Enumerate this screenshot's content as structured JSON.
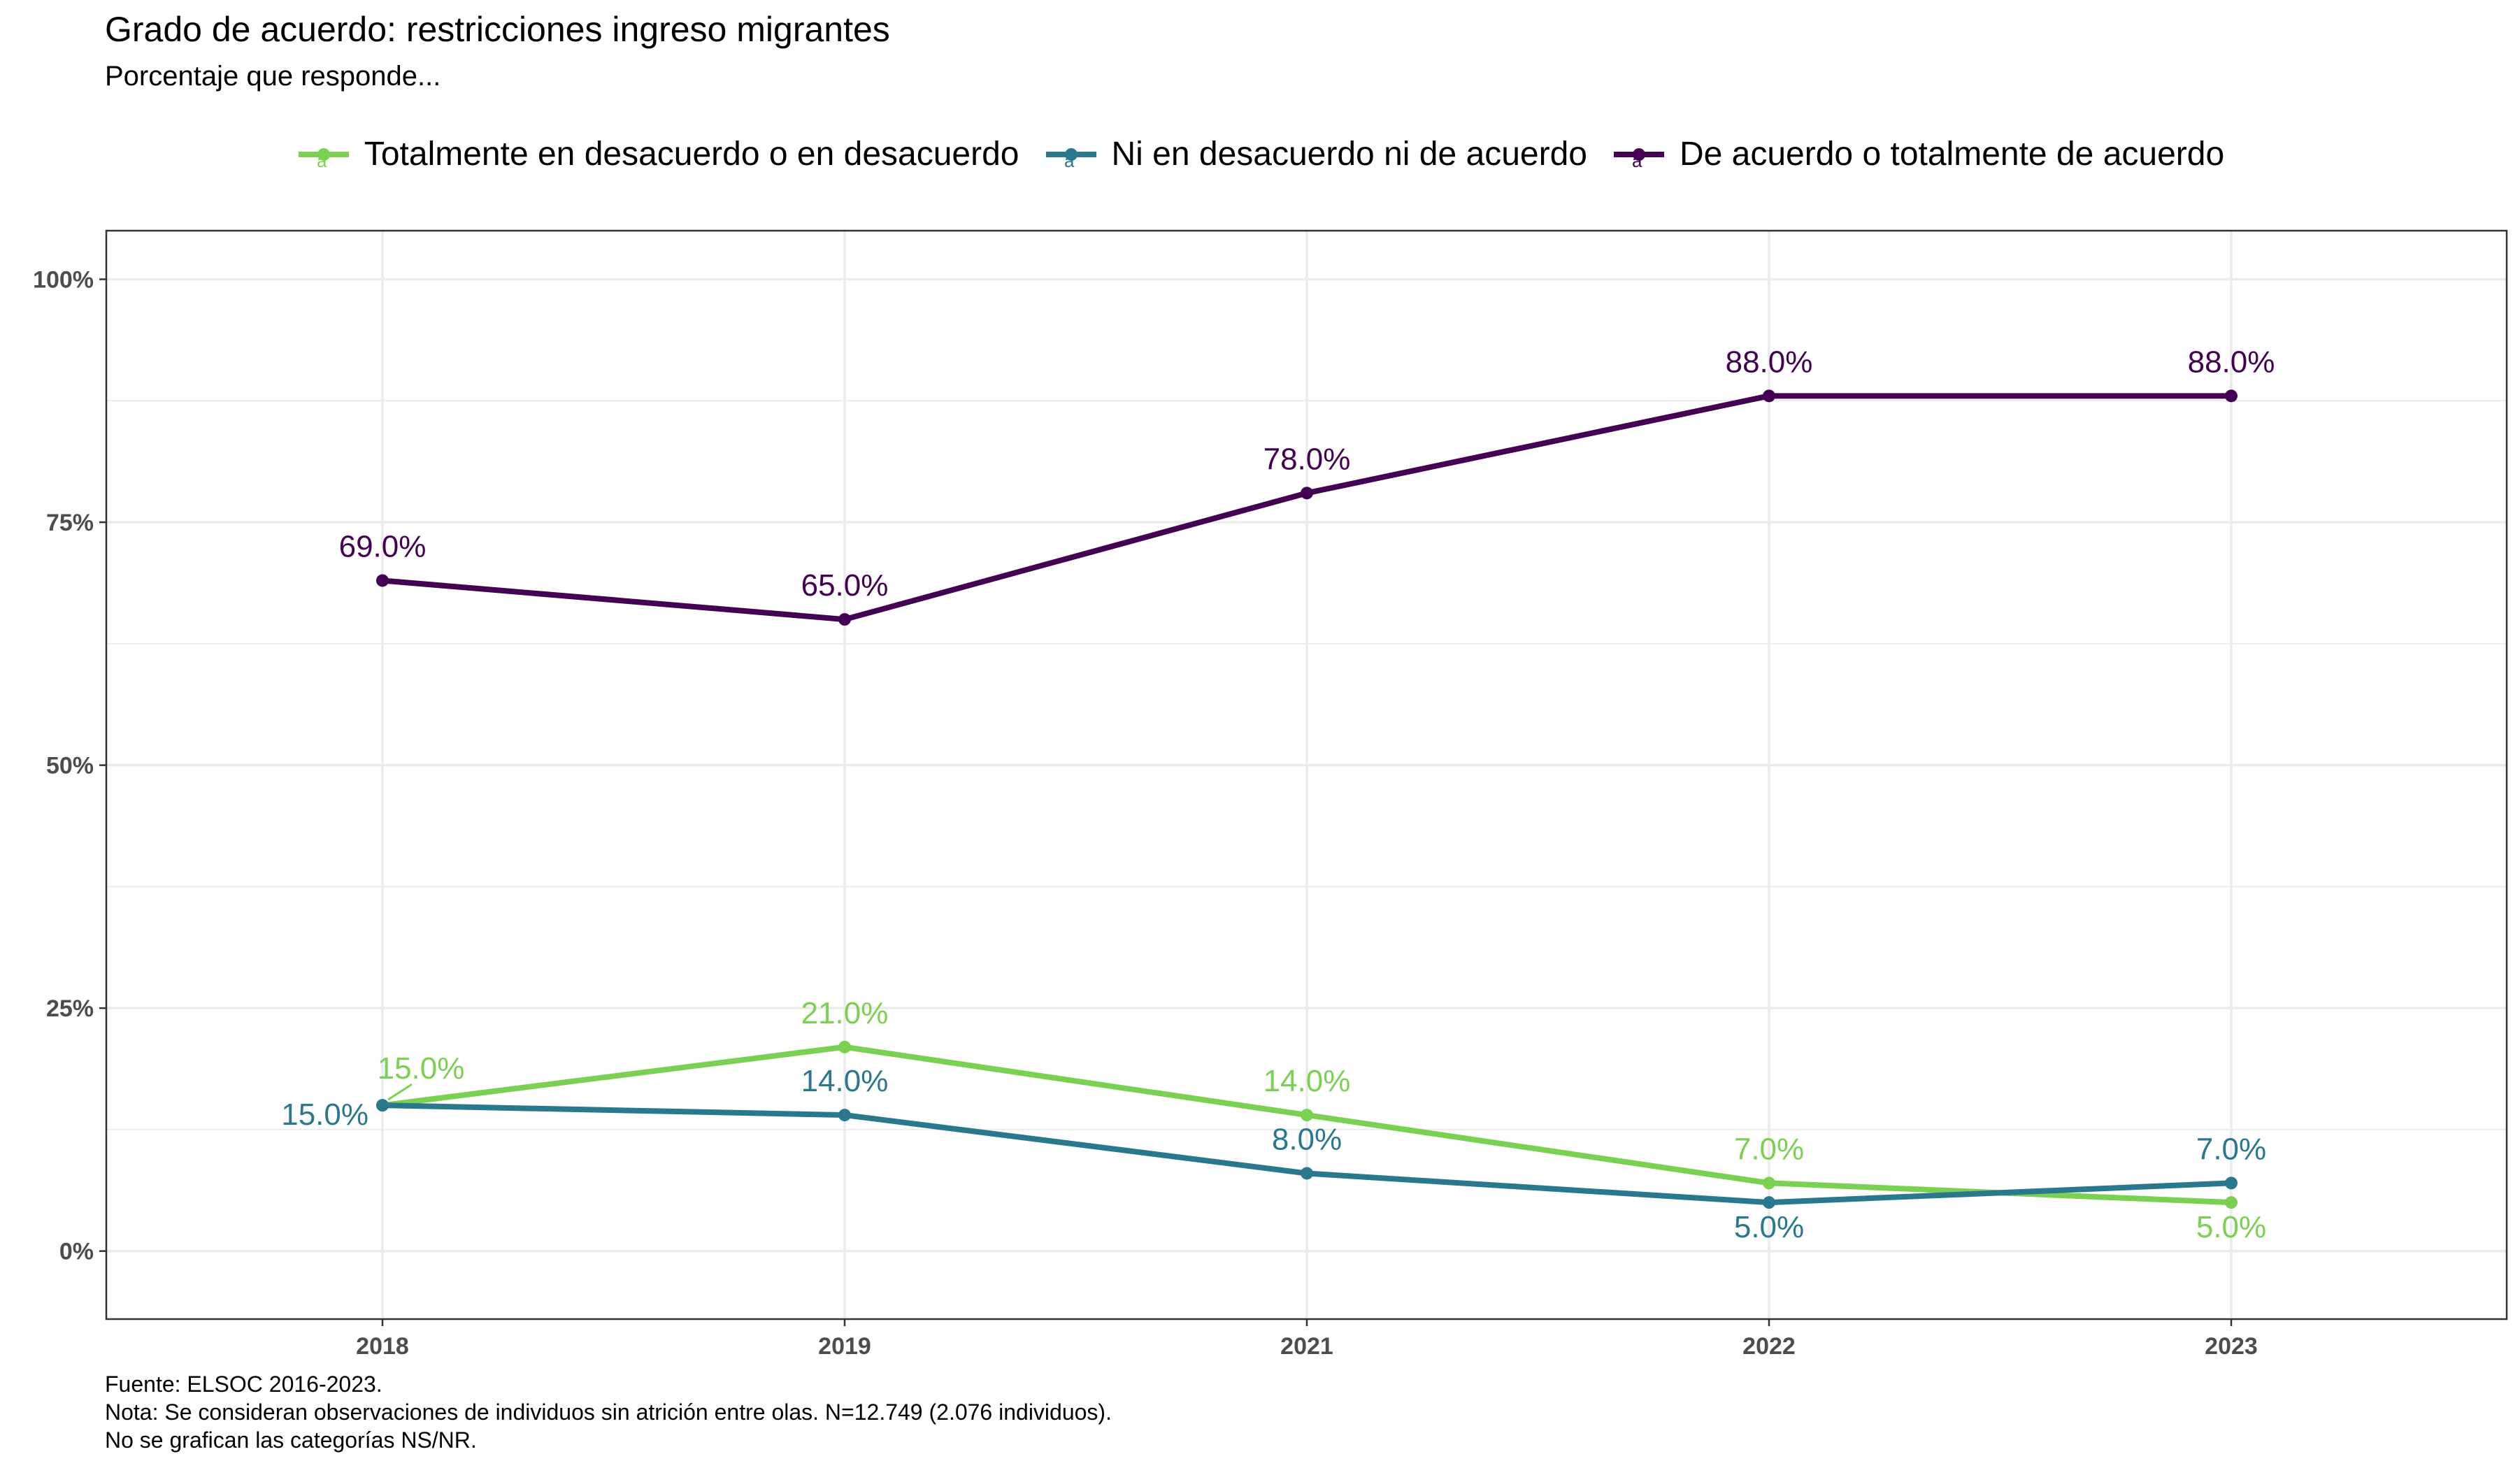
{
  "chart_data": {
    "type": "line",
    "title": "Grado de acuerdo: restricciones ingreso migrantes",
    "subtitle": "Porcentaje que responde...",
    "categories": [
      "2018",
      "2019",
      "2021",
      "2022",
      "2023"
    ],
    "ylim": [
      -7,
      105
    ],
    "yticks": [
      0,
      25,
      50,
      75,
      100
    ],
    "ytick_labels": [
      "0%",
      "25%",
      "50%",
      "75%",
      "100%"
    ],
    "grid": true,
    "legend_position": "top",
    "series": [
      {
        "name": "Totalmente en desacuerdo o en desacuerdo",
        "color": "#7AD151",
        "values": [
          15,
          21,
          14,
          7,
          5
        ],
        "labels": [
          "15.0%",
          "21.0%",
          "14.0%",
          "7.0%",
          "5.0%"
        ]
      },
      {
        "name": "Ni en desacuerdo ni de acuerdo",
        "color": "#2A788E",
        "values": [
          15,
          14,
          8,
          5,
          7
        ],
        "labels": [
          "15.0%",
          "14.0%",
          "8.0%",
          "5.0%",
          "7.0%"
        ]
      },
      {
        "name": "De acuerdo o totalmente de acuerdo",
        "color": "#440154",
        "values": [
          69,
          65,
          78,
          88,
          88
        ],
        "labels": [
          "69.0%",
          "65.0%",
          "78.0%",
          "88.0%",
          "88.0%"
        ]
      }
    ]
  },
  "caption": {
    "source": "Fuente: ELSOC 2016-2023.",
    "note": "Nota: Se consideran observaciones de individuos sin atrición entre olas. N=12.749 (2.076 individuos).",
    "note2": "No se grafican las categorías NS/NR."
  }
}
